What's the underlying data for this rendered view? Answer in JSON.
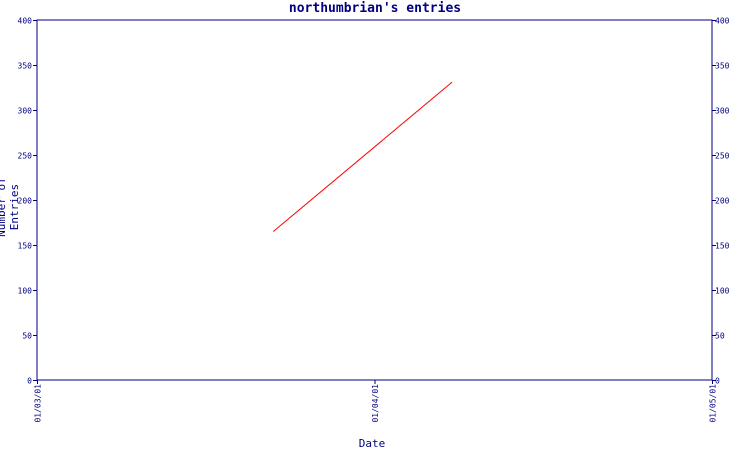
{
  "chart_data": {
    "type": "line",
    "title": "northumbrian's entries",
    "xlabel": "Date",
    "ylabel": "Number of Entries",
    "x_ticks": [
      "01/03/01",
      "01/04/01",
      "01/05/01"
    ],
    "x_tick_values": [
      0,
      1,
      2
    ],
    "ylim": [
      0,
      400
    ],
    "y_ticks": [
      0,
      50,
      100,
      150,
      200,
      250,
      300,
      350,
      400
    ],
    "xlim": [
      0,
      2
    ],
    "grid": false,
    "legend": "none",
    "series": [
      {
        "color": "#ff0000",
        "x": [
          0.7,
          1.23
        ],
        "y": [
          165,
          331
        ]
      }
    ],
    "axis_color": "#000080"
  }
}
